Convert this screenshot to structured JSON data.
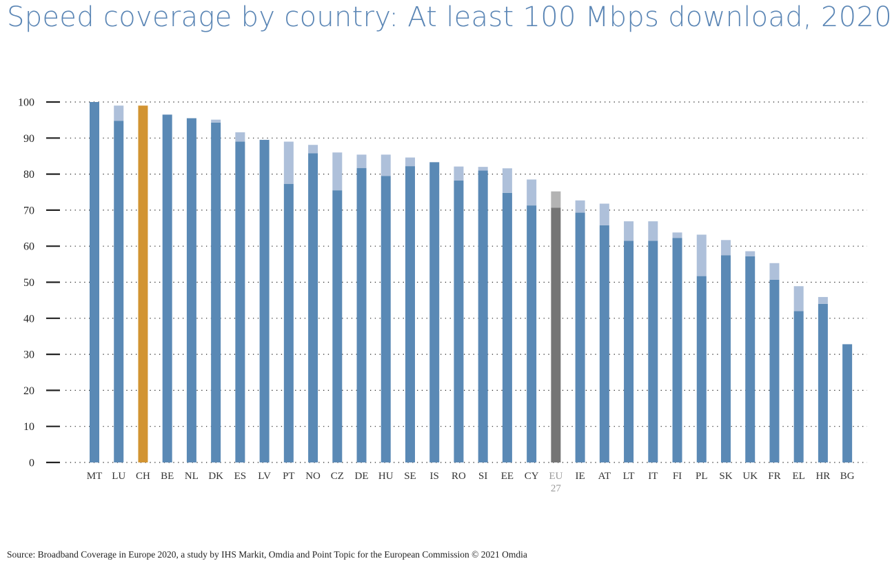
{
  "title": "Speed coverage by country: At least 100 Mbps download, 2020",
  "source": "Source: Broadband Coverage in Europe 2020, a study by IHS Markit, Omdia and Point Topic for the European Commission  © 2021 Omdia",
  "chart_data": {
    "type": "bar",
    "stacked": true,
    "title": "Speed coverage by country: At least 100 Mbps download, 2020",
    "xlabel": "",
    "ylabel": "",
    "ylim": [
      0,
      100
    ],
    "yticks": [
      0,
      10,
      20,
      30,
      40,
      50,
      60,
      70,
      80,
      90,
      100
    ],
    "grid": "horizontal dotted",
    "legend": "none",
    "categories": [
      "MT",
      "LU",
      "CH",
      "BE",
      "NL",
      "DK",
      "ES",
      "LV",
      "PT",
      "NO",
      "CZ",
      "DE",
      "HU",
      "SE",
      "IS",
      "RO",
      "SI",
      "EE",
      "CY",
      [
        "EU",
        "27"
      ],
      "IE",
      "AT",
      "LT",
      "IT",
      "FI",
      "PL",
      "SK",
      "UK",
      "FR",
      "EL",
      "HR",
      "BG"
    ],
    "series": [
      {
        "values": [
          100,
          94.8,
          99,
          96.5,
          95.5,
          94.3,
          89,
          89.5,
          77.3,
          85.8,
          75.5,
          81.7,
          79.5,
          82.2,
          83.3,
          78.2,
          81,
          74.8,
          71.3,
          70.7,
          69.3,
          65.8,
          61.5,
          61.5,
          62.3,
          51.7,
          57.5,
          57.2,
          50.7,
          42,
          44,
          32.8
        ]
      },
      {
        "values": [
          0,
          4.2,
          0,
          0,
          0,
          0.8,
          2.6,
          0,
          11.7,
          2.3,
          10.5,
          3.7,
          5.9,
          2.4,
          0,
          3.9,
          1,
          6.8,
          7.2,
          4.5,
          3.4,
          6,
          5.4,
          5.4,
          1.5,
          11.5,
          4.2,
          1.4,
          4.6,
          6.9,
          1.9,
          0
        ]
      }
    ],
    "highlight": {
      "CH": "#d29432",
      "EU 27": [
        "#757575",
        "#b3b3b3"
      ]
    },
    "colors": {
      "base": "#5a89b5",
      "top": "#aec0da",
      "axis": "#222222",
      "grid": "#222222",
      "title": "#5b86b5"
    }
  }
}
